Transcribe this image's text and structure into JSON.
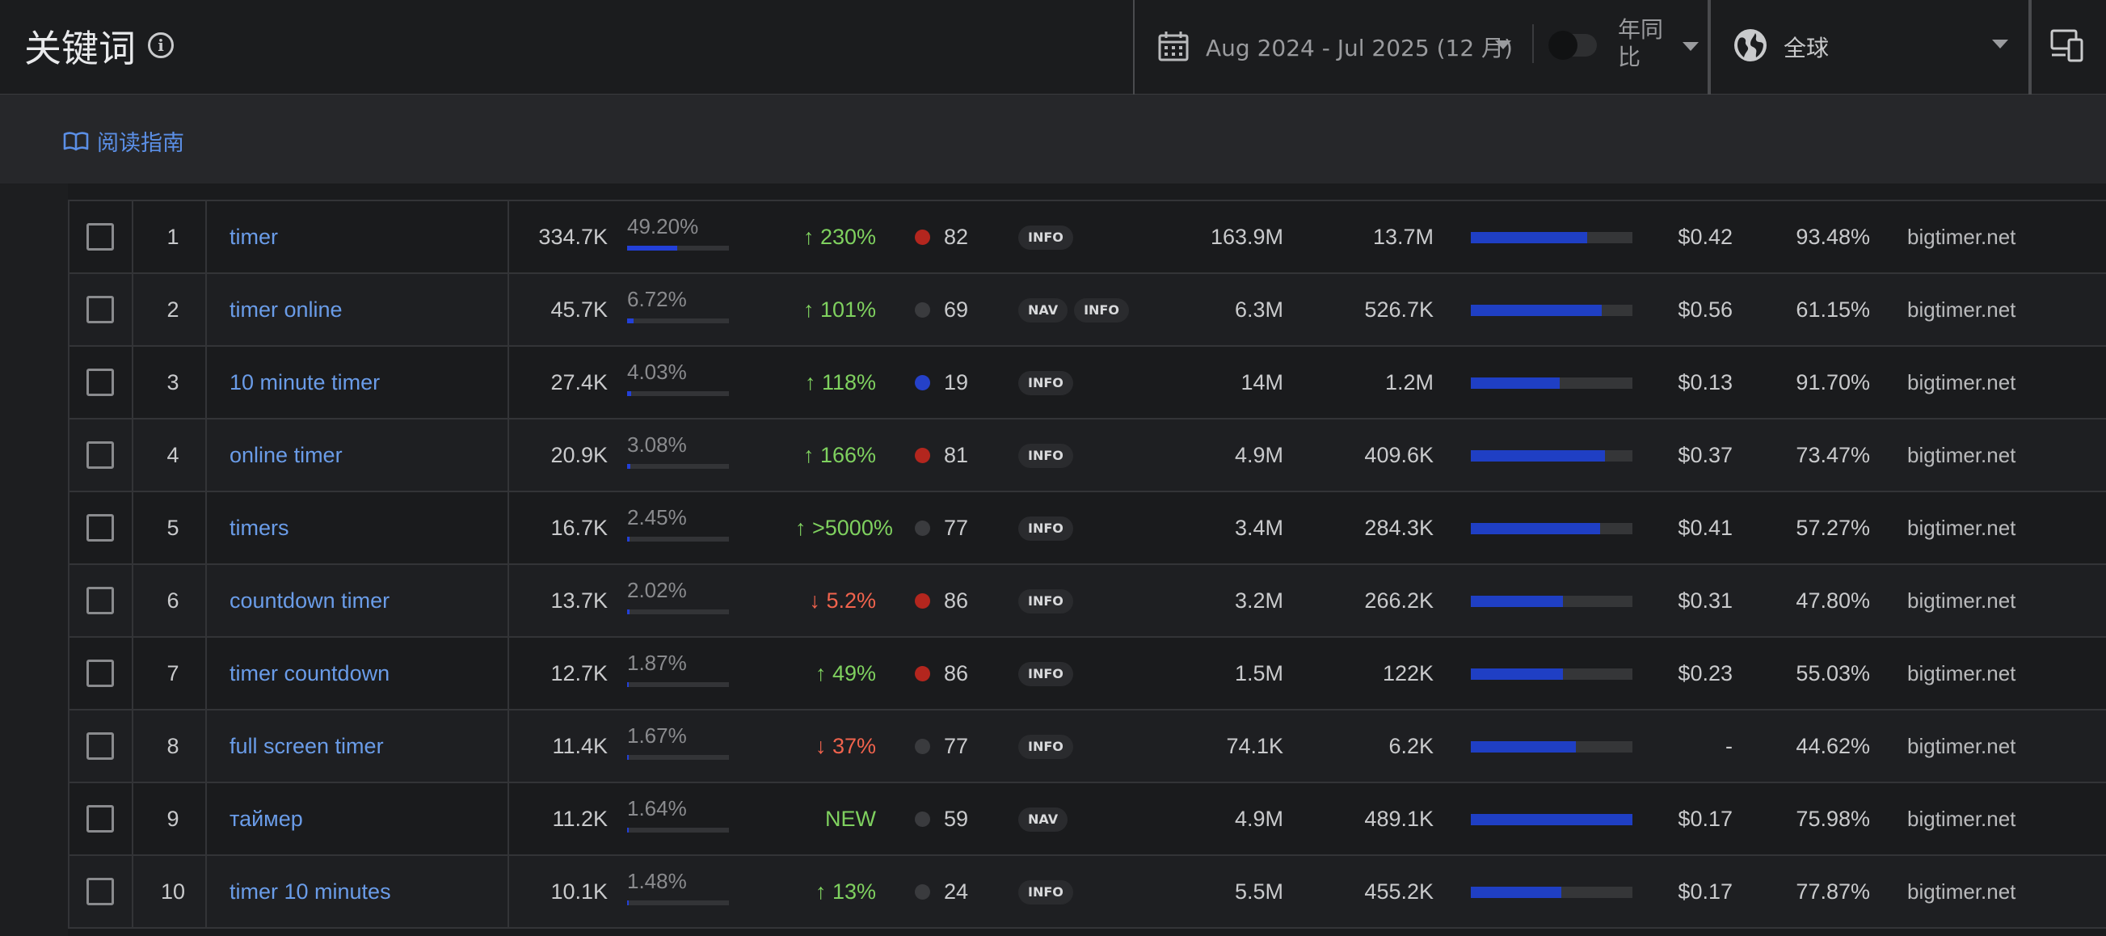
{
  "header": {
    "title": "关键词",
    "date_range": "Aug 2024 - Jul 2025 (12 月)",
    "yoy_label": "年同比",
    "region": "全球"
  },
  "subbar": {
    "guide_label": "阅读指南"
  },
  "colors": {
    "accent": "#5b8fe6",
    "trend_up": "#7fd15f",
    "trend_down": "#f0634d",
    "kd_red": "#b3261e",
    "kd_blue": "#2541c9",
    "kd_gray": "#3a3b3e",
    "bar_blue": "#1f3fc4"
  },
  "rows": [
    {
      "num": "1",
      "keyword": "timer",
      "volume": "334.7K",
      "share": "49.20%",
      "share_pct": 49.2,
      "trend": "↑ 230%",
      "trend_dir": "up",
      "kd_color": "red",
      "kd": "82",
      "badges": [
        "INFO"
      ],
      "results": "163.9M",
      "traffic": "13.7M",
      "competition": 0.72,
      "cpc": "$0.42",
      "ctr": "93.48%",
      "site": "bigtimer.net"
    },
    {
      "num": "2",
      "keyword": "timer online",
      "volume": "45.7K",
      "share": "6.72%",
      "share_pct": 6.72,
      "trend": "↑ 101%",
      "trend_dir": "up",
      "kd_color": "gray",
      "kd": "69",
      "badges": [
        "NAV",
        "INFO"
      ],
      "results": "6.3M",
      "traffic": "526.7K",
      "competition": 0.81,
      "cpc": "$0.56",
      "ctr": "61.15%",
      "site": "bigtimer.net"
    },
    {
      "num": "3",
      "keyword": "10 minute timer",
      "volume": "27.4K",
      "share": "4.03%",
      "share_pct": 4.03,
      "trend": "↑ 118%",
      "trend_dir": "up",
      "kd_color": "blue",
      "kd": "19",
      "badges": [
        "INFO"
      ],
      "results": "14M",
      "traffic": "1.2M",
      "competition": 0.55,
      "cpc": "$0.13",
      "ctr": "91.70%",
      "site": "bigtimer.net"
    },
    {
      "num": "4",
      "keyword": "online timer",
      "volume": "20.9K",
      "share": "3.08%",
      "share_pct": 3.08,
      "trend": "↑ 166%",
      "trend_dir": "up",
      "kd_color": "red",
      "kd": "81",
      "badges": [
        "INFO"
      ],
      "results": "4.9M",
      "traffic": "409.6K",
      "competition": 0.83,
      "cpc": "$0.37",
      "ctr": "73.47%",
      "site": "bigtimer.net"
    },
    {
      "num": "5",
      "keyword": "timers",
      "volume": "16.7K",
      "share": "2.45%",
      "share_pct": 2.45,
      "trend": "↑ >5000%",
      "trend_dir": "up",
      "kd_color": "gray",
      "kd": "77",
      "badges": [
        "INFO"
      ],
      "results": "3.4M",
      "traffic": "284.3K",
      "competition": 0.8,
      "cpc": "$0.41",
      "ctr": "57.27%",
      "site": "bigtimer.net"
    },
    {
      "num": "6",
      "keyword": "countdown timer",
      "volume": "13.7K",
      "share": "2.02%",
      "share_pct": 2.02,
      "trend": "↓ 5.2%",
      "trend_dir": "down",
      "kd_color": "red",
      "kd": "86",
      "badges": [
        "INFO"
      ],
      "results": "3.2M",
      "traffic": "266.2K",
      "competition": 0.57,
      "cpc": "$0.31",
      "ctr": "47.80%",
      "site": "bigtimer.net"
    },
    {
      "num": "7",
      "keyword": "timer countdown",
      "volume": "12.7K",
      "share": "1.87%",
      "share_pct": 1.87,
      "trend": "↑ 49%",
      "trend_dir": "up",
      "kd_color": "red",
      "kd": "86",
      "badges": [
        "INFO"
      ],
      "results": "1.5M",
      "traffic": "122K",
      "competition": 0.57,
      "cpc": "$0.23",
      "ctr": "55.03%",
      "site": "bigtimer.net"
    },
    {
      "num": "8",
      "keyword": "full screen timer",
      "volume": "11.4K",
      "share": "1.67%",
      "share_pct": 1.67,
      "trend": "↓ 37%",
      "trend_dir": "down",
      "kd_color": "gray",
      "kd": "77",
      "badges": [
        "INFO"
      ],
      "results": "74.1K",
      "traffic": "6.2K",
      "competition": 0.65,
      "cpc": "-",
      "ctr": "44.62%",
      "site": "bigtimer.net"
    },
    {
      "num": "9",
      "keyword": "таймер",
      "volume": "11.2K",
      "share": "1.64%",
      "share_pct": 1.64,
      "trend": "NEW",
      "trend_dir": "up",
      "kd_color": "gray",
      "kd": "59",
      "badges": [
        "NAV"
      ],
      "results": "4.9M",
      "traffic": "489.1K",
      "competition": 1.0,
      "cpc": "$0.17",
      "ctr": "75.98%",
      "site": "bigtimer.net"
    },
    {
      "num": "10",
      "keyword": "timer 10 minutes",
      "volume": "10.1K",
      "share": "1.48%",
      "share_pct": 1.48,
      "trend": "↑ 13%",
      "trend_dir": "up",
      "kd_color": "gray",
      "kd": "24",
      "badges": [
        "INFO"
      ],
      "results": "5.5M",
      "traffic": "455.2K",
      "competition": 0.56,
      "cpc": "$0.17",
      "ctr": "77.87%",
      "site": "bigtimer.net"
    }
  ]
}
